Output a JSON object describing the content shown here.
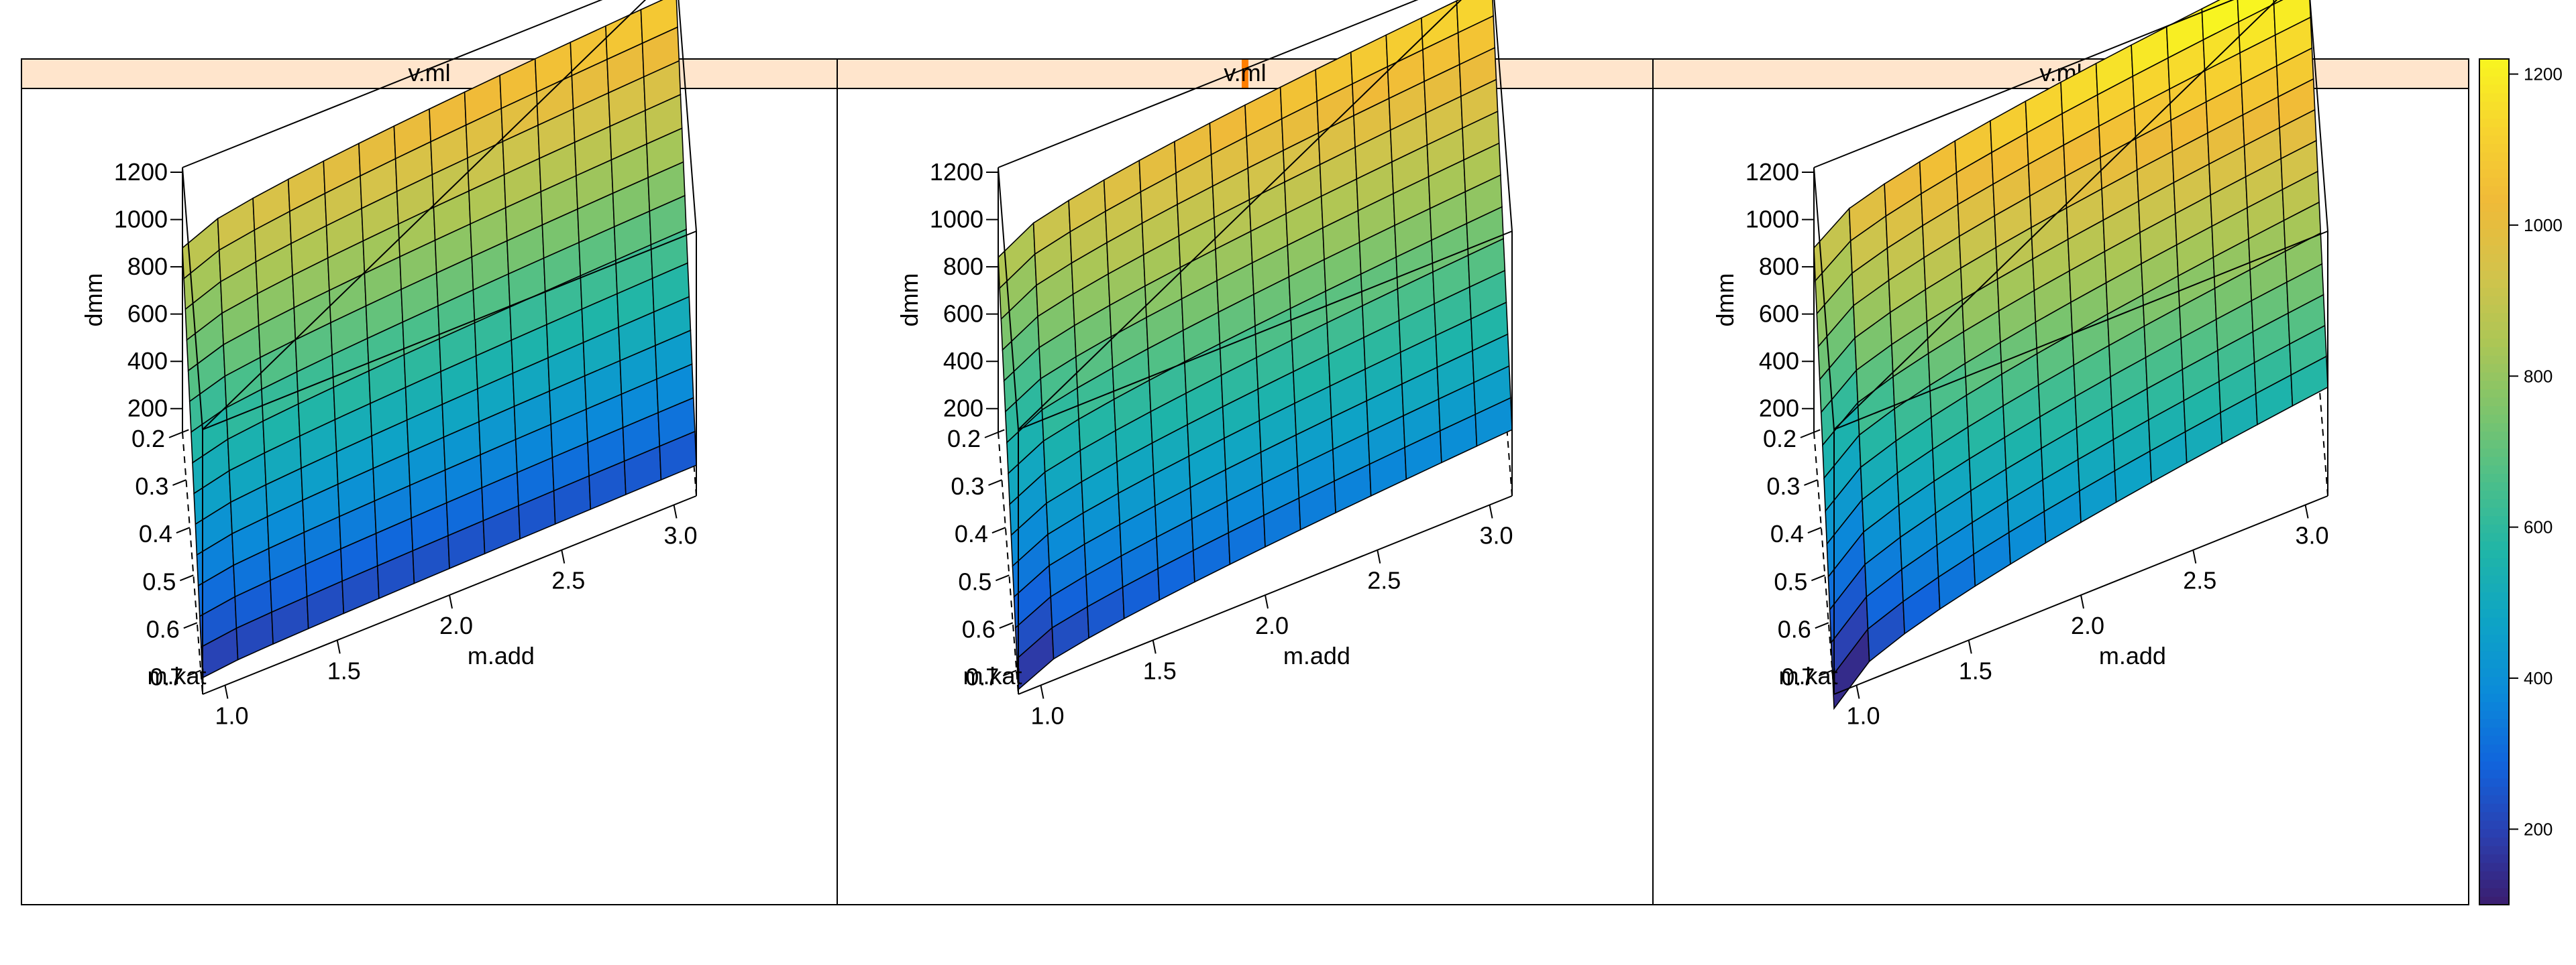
{
  "chart_data": {
    "type": "surface",
    "panels": [
      {
        "strip_label": "v.ml",
        "strip_indicator": 0.0,
        "surface": {
          "z_min_corner": 170,
          "z_max_corner": 1120,
          "z_at_kat_max_add_max": 230,
          "z_at_kat_min_add_min": 880
        }
      },
      {
        "strip_label": "v.ml",
        "strip_indicator": 0.5,
        "surface": {
          "z_min_corner": 120,
          "z_max_corner": 1160,
          "z_at_kat_max_add_max": 380,
          "z_at_kat_min_add_min": 840
        }
      },
      {
        "strip_label": "v.ml",
        "strip_indicator": 1.0,
        "surface": {
          "z_min_corner": 40,
          "z_max_corner": 1280,
          "z_at_kat_max_add_max": 560,
          "z_at_kat_min_add_min": 880
        }
      }
    ],
    "axes": {
      "z": {
        "label": "dmm",
        "ticks": [
          200,
          400,
          600,
          800,
          1000,
          1200
        ],
        "range": [
          100,
          1220
        ]
      },
      "y": {
        "label": "m.kat",
        "ticks": [
          0.2,
          0.3,
          0.4,
          0.5,
          0.6,
          0.7
        ],
        "range": [
          0.2,
          0.75
        ]
      },
      "x": {
        "label": "m.add",
        "ticks": [
          1.0,
          1.5,
          2.0,
          2.5,
          3.0
        ],
        "range": [
          0.9,
          3.1
        ]
      }
    },
    "grid_lines": 14,
    "colorkey": {
      "ticks": [
        200,
        400,
        600,
        800,
        1000,
        1200
      ],
      "range": [
        100,
        1220
      ],
      "palette": [
        "#3b1d6e",
        "#2b3fb0",
        "#1164dc",
        "#0b8ad9",
        "#0ea3c6",
        "#1fb5a8",
        "#4bbf8a",
        "#7dc46c",
        "#adc655",
        "#d4c34a",
        "#f0ba38",
        "#f7d42f",
        "#f8f520"
      ]
    },
    "strip_color": "#ffe5cc",
    "strip_indicator_color": "#ff7f00"
  }
}
